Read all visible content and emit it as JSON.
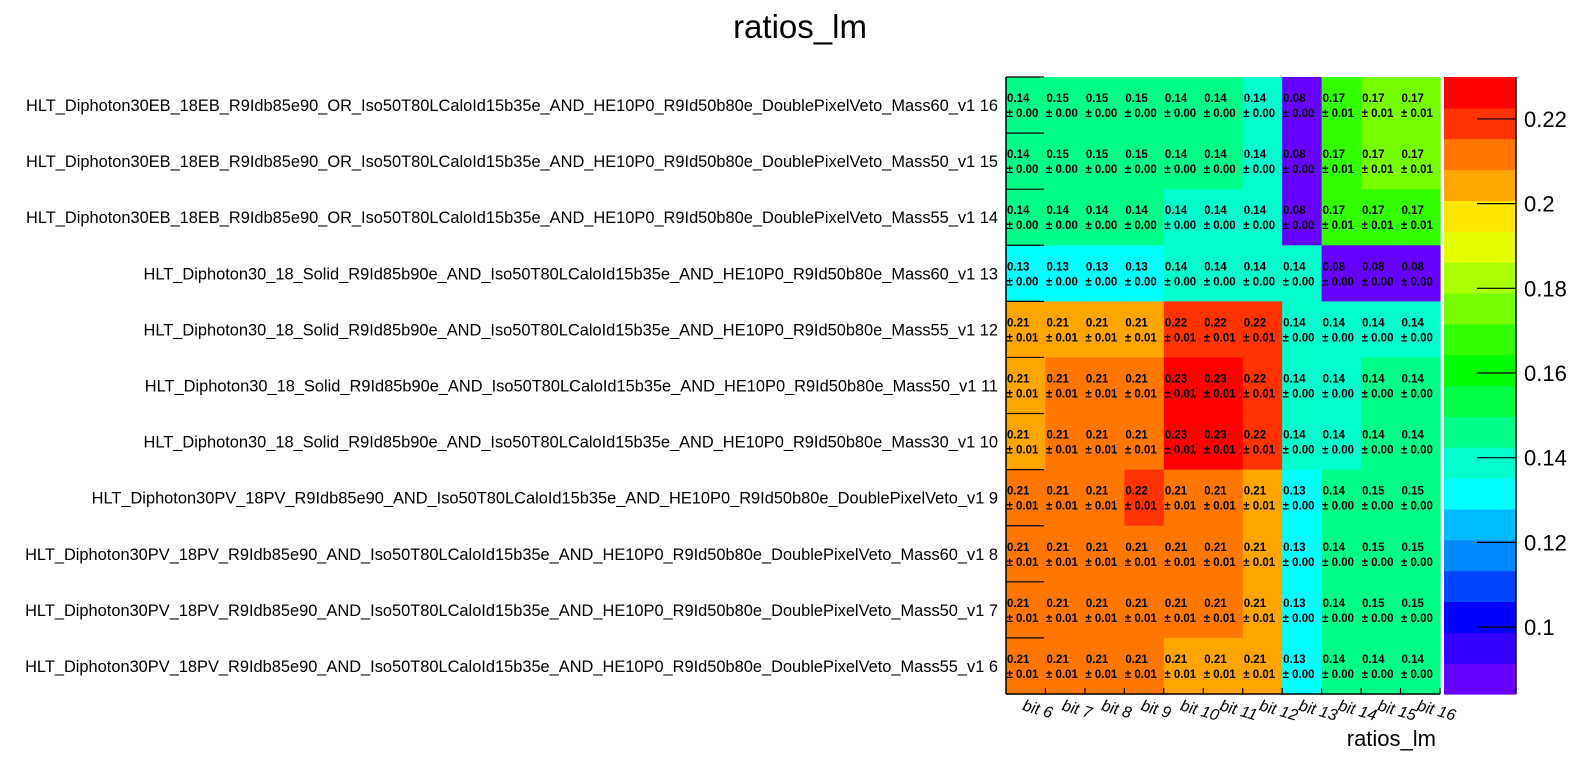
{
  "chart_data": {
    "type": "heatmap",
    "title": "ratios_lm",
    "xlabel": "ratios_lm",
    "ylabel": "",
    "x_categories": [
      "bit 6",
      "bit 7",
      "bit 8",
      "bit 9",
      "bit 10",
      "bit 11",
      "bit 12",
      "bit 13",
      "bit 14",
      "bit 15",
      "bit 16"
    ],
    "y_categories": [
      "HLT_Diphoton30EB_18EB_R9Idb85e90_OR_Iso50T80LCaloId15b35e_AND_HE10P0_R9Id50b80e_DoublePixelVeto_Mass60_v1 16",
      "HLT_Diphoton30EB_18EB_R9Idb85e90_OR_Iso50T80LCaloId15b35e_AND_HE10P0_R9Id50b80e_DoublePixelVeto_Mass50_v1 15",
      "HLT_Diphoton30EB_18EB_R9Idb85e90_OR_Iso50T80LCaloId15b35e_AND_HE10P0_R9Id50b80e_DoublePixelVeto_Mass55_v1 14",
      "HLT_Diphoton30_18_Solid_R9Id85b90e_AND_Iso50T80LCaloId15b35e_AND_HE10P0_R9Id50b80e_Mass60_v1 13",
      "HLT_Diphoton30_18_Solid_R9Id85b90e_AND_Iso50T80LCaloId15b35e_AND_HE10P0_R9Id50b80e_Mass55_v1 12",
      "HLT_Diphoton30_18_Solid_R9Id85b90e_AND_Iso50T80LCaloId15b35e_AND_HE10P0_R9Id50b80e_Mass50_v1 11",
      "HLT_Diphoton30_18_Solid_R9Id85b90e_AND_Iso50T80LCaloId15b35e_AND_HE10P0_R9Id50b80e_Mass30_v1 10",
      "HLT_Diphoton30PV_18PV_R9Idb85e90_AND_Iso50T80LCaloId15b35e_AND_HE10P0_R9Id50b80e_DoublePixelVeto_v1 9",
      "HLT_Diphoton30PV_18PV_R9Idb85e90_AND_Iso50T80LCaloId15b35e_AND_HE10P0_R9Id50b80e_DoublePixelVeto_Mass60_v1 8",
      "HLT_Diphoton30PV_18PV_R9Idb85e90_AND_Iso50T80LCaloId15b35e_AND_HE10P0_R9Id50b80e_DoublePixelVeto_Mass50_v1 7",
      "HLT_Diphoton30PV_18PV_R9Idb85e90_AND_Iso50T80LCaloId15b35e_AND_HE10P0_R9Id50b80e_DoublePixelVeto_Mass55_v1 6"
    ],
    "values": [
      [
        0.144,
        0.146,
        0.146,
        0.146,
        0.144,
        0.144,
        0.14,
        0.08,
        0.168,
        0.173,
        0.173
      ],
      [
        0.144,
        0.146,
        0.146,
        0.146,
        0.144,
        0.144,
        0.14,
        0.08,
        0.168,
        0.173,
        0.173
      ],
      [
        0.144,
        0.144,
        0.144,
        0.144,
        0.14,
        0.14,
        0.14,
        0.08,
        0.168,
        0.168,
        0.168
      ],
      [
        0.131,
        0.131,
        0.131,
        0.131,
        0.14,
        0.14,
        0.14,
        0.14,
        0.08,
        0.08,
        0.08
      ],
      [
        0.207,
        0.207,
        0.207,
        0.207,
        0.219,
        0.219,
        0.219,
        0.14,
        0.14,
        0.14,
        0.14
      ],
      [
        0.207,
        0.212,
        0.212,
        0.212,
        0.226,
        0.226,
        0.219,
        0.14,
        0.14,
        0.144,
        0.144
      ],
      [
        0.207,
        0.212,
        0.212,
        0.212,
        0.226,
        0.226,
        0.219,
        0.14,
        0.14,
        0.144,
        0.144
      ],
      [
        0.212,
        0.212,
        0.212,
        0.219,
        0.212,
        0.212,
        0.207,
        0.131,
        0.144,
        0.146,
        0.146
      ],
      [
        0.212,
        0.212,
        0.212,
        0.212,
        0.212,
        0.212,
        0.207,
        0.131,
        0.144,
        0.146,
        0.146
      ],
      [
        0.212,
        0.212,
        0.212,
        0.212,
        0.212,
        0.212,
        0.207,
        0.131,
        0.144,
        0.146,
        0.146
      ],
      [
        0.212,
        0.212,
        0.212,
        0.212,
        0.207,
        0.207,
        0.207,
        0.131,
        0.144,
        0.144,
        0.144
      ]
    ],
    "errors": [
      [
        0.0,
        0.0,
        0.0,
        0.0,
        0.0,
        0.0,
        0.0,
        0.0,
        0.01,
        0.01,
        0.01
      ],
      [
        0.0,
        0.0,
        0.0,
        0.0,
        0.0,
        0.0,
        0.0,
        0.0,
        0.01,
        0.01,
        0.01
      ],
      [
        0.0,
        0.0,
        0.0,
        0.0,
        0.0,
        0.0,
        0.0,
        0.0,
        0.01,
        0.01,
        0.01
      ],
      [
        0.0,
        0.0,
        0.0,
        0.0,
        0.0,
        0.0,
        0.0,
        0.0,
        0.0,
        0.0,
        0.0
      ],
      [
        0.01,
        0.01,
        0.01,
        0.01,
        0.01,
        0.01,
        0.01,
        0.0,
        0.0,
        0.0,
        0.0
      ],
      [
        0.01,
        0.01,
        0.01,
        0.01,
        0.01,
        0.01,
        0.01,
        0.0,
        0.0,
        0.0,
        0.0
      ],
      [
        0.01,
        0.01,
        0.01,
        0.01,
        0.01,
        0.01,
        0.01,
        0.0,
        0.0,
        0.0,
        0.0
      ],
      [
        0.01,
        0.01,
        0.01,
        0.01,
        0.01,
        0.01,
        0.01,
        0.0,
        0.0,
        0.0,
        0.0
      ],
      [
        0.01,
        0.01,
        0.01,
        0.01,
        0.01,
        0.01,
        0.01,
        0.0,
        0.0,
        0.0,
        0.0
      ],
      [
        0.01,
        0.01,
        0.01,
        0.01,
        0.01,
        0.01,
        0.01,
        0.0,
        0.0,
        0.0,
        0.0
      ],
      [
        0.01,
        0.01,
        0.01,
        0.01,
        0.01,
        0.01,
        0.01,
        0.0,
        0.0,
        0.0,
        0.0
      ]
    ],
    "zlim": [
      0.0842,
      0.2299
    ],
    "z_ticks": [
      0.1,
      0.12,
      0.14,
      0.16,
      0.18,
      0.2,
      0.22
    ],
    "z_tick_labels": [
      "0.1",
      "0.12",
      "0.14",
      "0.16",
      "0.18",
      "0.2",
      "0.22"
    ],
    "palette": [
      "#6600ff",
      "#3300ff",
      "#0000ff",
      "#0044ff",
      "#0088ff",
      "#00bbff",
      "#00ffff",
      "#00ffcc",
      "#00ff88",
      "#00ff44",
      "#00ff00",
      "#33ff00",
      "#77ff00",
      "#aaff00",
      "#e6ff00",
      "#ffe600",
      "#ffa500",
      "#ff7700",
      "#ff3300",
      "#ff0000"
    ],
    "colorbar": "right",
    "grid": false
  }
}
